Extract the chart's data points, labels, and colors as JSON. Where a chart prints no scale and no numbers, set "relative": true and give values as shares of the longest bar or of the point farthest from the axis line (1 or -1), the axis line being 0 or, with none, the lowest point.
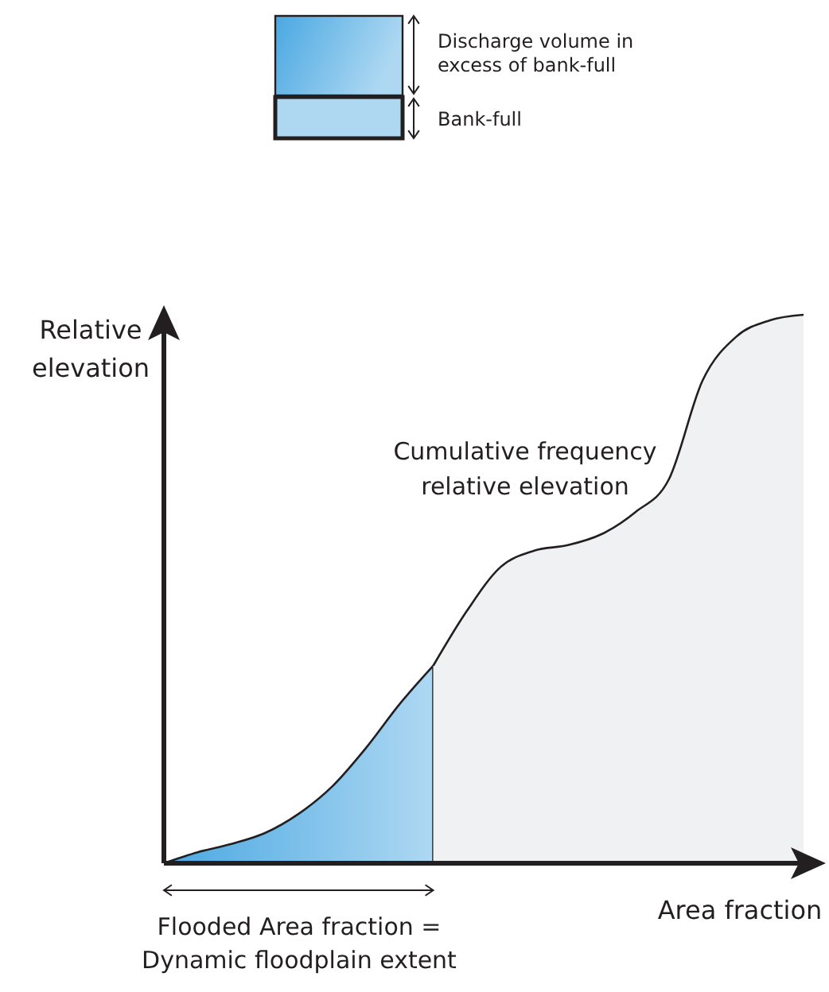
{
  "chart_data": {
    "type": "area",
    "relative": true,
    "xlabel": "Area fraction",
    "ylabel": "Relative elevation",
    "categories": [
      null,
      null,
      null,
      null,
      null,
      null,
      null,
      null,
      null,
      null,
      null,
      null,
      null,
      null,
      null,
      null,
      null,
      null,
      null,
      null
    ],
    "series": [
      {
        "color": "#4aa8e2",
        "values": [
          0,
          0.02,
          0.035,
          0.055,
          0.09,
          0.14,
          0.21,
          0.29,
          0.36,
          null,
          null,
          null,
          null,
          null,
          null,
          null,
          null,
          null,
          null,
          null
        ]
      },
      {
        "color": "#f0f1f3",
        "values": [
          null,
          null,
          null,
          null,
          null,
          null,
          null,
          null,
          0.36,
          0.46,
          0.54,
          0.57,
          0.58,
          0.6,
          0.64,
          0.7,
          0.88,
          0.96,
          0.99,
          1
        ]
      }
    ],
    "annotations": [
      "Discharge volume in excess of bank-full",
      "Bank-full",
      "Cumulative frequency relative elevation",
      "Flooded Area fraction = Dynamic floodplain extent"
    ]
  }
}
